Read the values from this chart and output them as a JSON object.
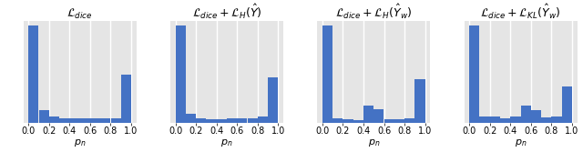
{
  "titles": [
    "$\\mathcal{L}_{dice}$",
    "$\\mathcal{L}_{dice} + \\mathcal{L}_H(\\hat{Y})$",
    "$\\mathcal{L}_{dice} + \\mathcal{L}_H(\\hat{Y}_w)$",
    "$\\mathcal{L}_{dice} + \\mathcal{L}_{KL}(\\hat{Y}_w)$"
  ],
  "xlabel": "$p_n$",
  "bar_color": "#4472C4",
  "bg_color": "#E5E5E5",
  "bins": [
    0.0,
    0.1,
    0.2,
    0.3,
    0.4,
    0.5,
    0.6,
    0.7,
    0.8,
    0.9,
    1.0
  ],
  "hist_data": [
    [
      1.0,
      0.13,
      0.07,
      0.05,
      0.05,
      0.05,
      0.05,
      0.05,
      0.05,
      0.5
    ],
    [
      1.0,
      0.1,
      0.05,
      0.04,
      0.04,
      0.05,
      0.05,
      0.05,
      0.07,
      0.47
    ],
    [
      1.0,
      0.05,
      0.04,
      0.03,
      0.18,
      0.14,
      0.04,
      0.04,
      0.05,
      0.45
    ],
    [
      1.0,
      0.07,
      0.07,
      0.05,
      0.07,
      0.18,
      0.13,
      0.06,
      0.07,
      0.38
    ]
  ],
  "xlim": [
    -0.05,
    1.05
  ],
  "ylim_factors": [
    1.05,
    1.05,
    1.05,
    1.05
  ],
  "xticks": [
    0.0,
    0.2,
    0.4,
    0.6,
    0.8,
    1.0
  ],
  "xtick_labels": [
    "0.0",
    "0.2",
    "0.4",
    "0.6",
    "0.8",
    "1.0"
  ],
  "title_fontsize": 9,
  "xlabel_fontsize": 8,
  "tick_fontsize": 7,
  "grid_color": "#FFFFFF",
  "grid_linewidth": 1.0
}
